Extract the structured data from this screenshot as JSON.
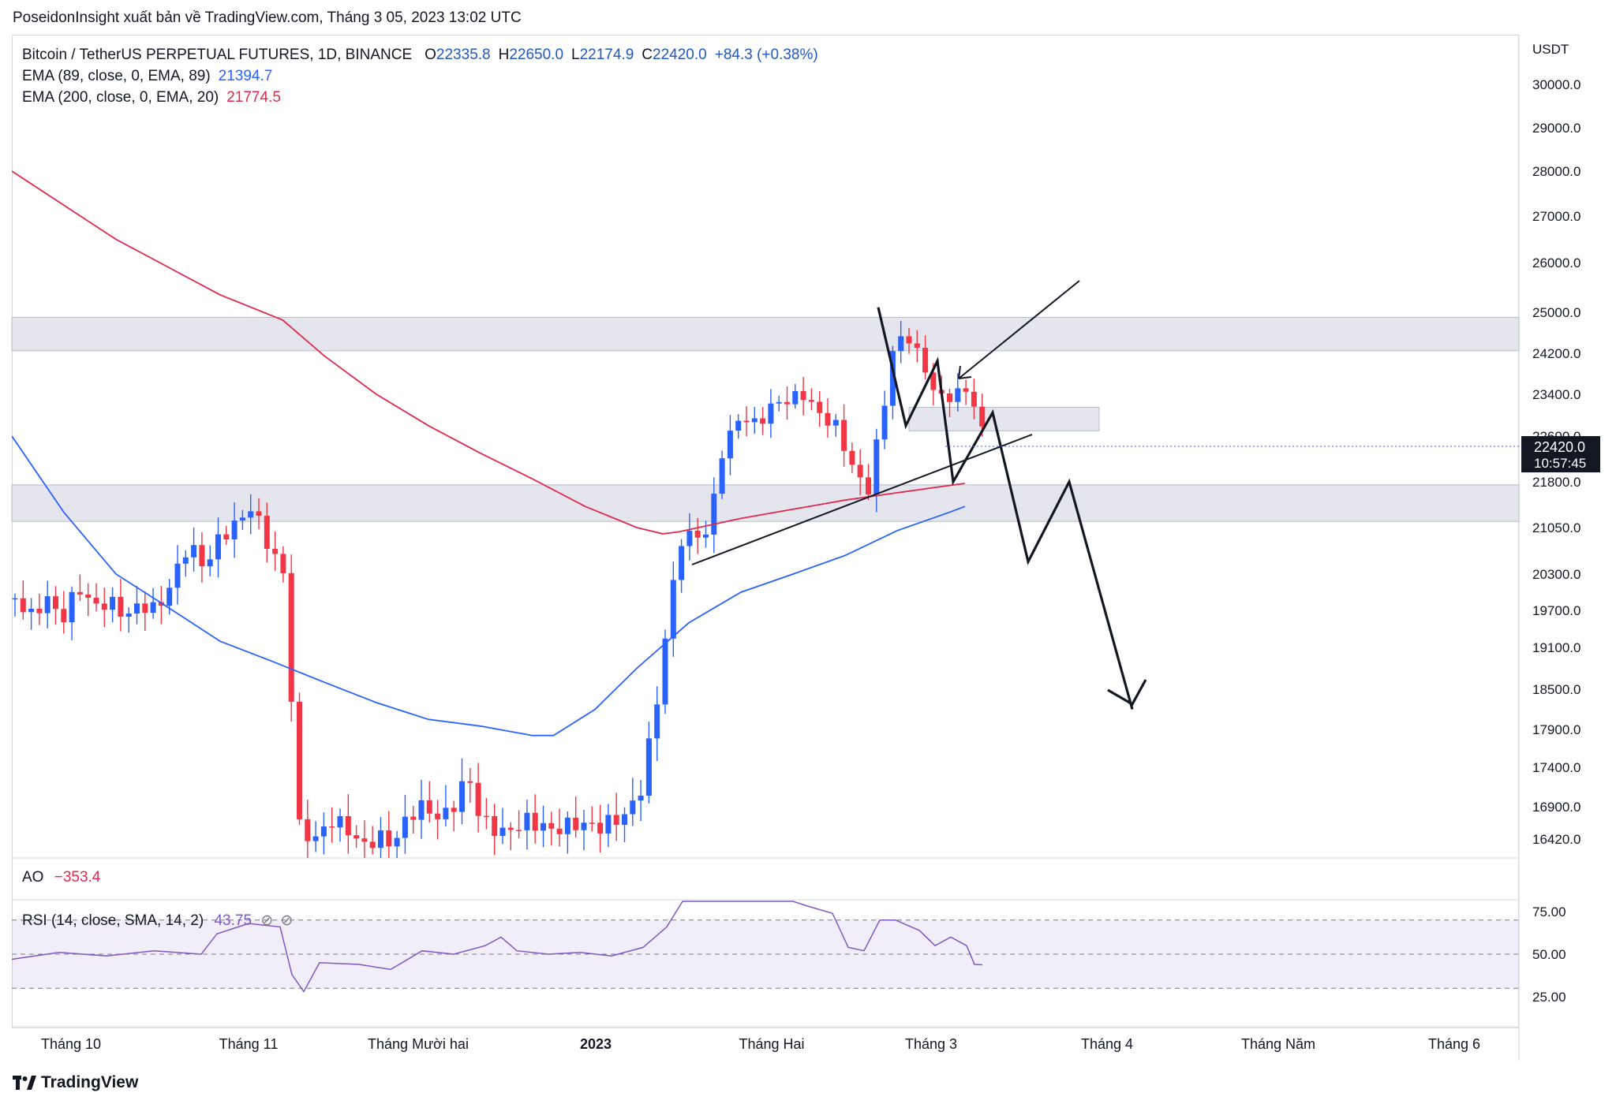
{
  "publisher_line": "PoseidonInsight xuất bản về TradingView.com, Tháng 3 05, 2023 13:02 UTC",
  "legend": {
    "symbol": "Bitcoin / TetherUS PERPETUAL FUTURES, 1D, BINANCE",
    "ohlc": {
      "open_label": "O",
      "open": "22335.8",
      "high_label": "H",
      "high": "22650.0",
      "low_label": "L",
      "low": "22174.9",
      "close_label": "C",
      "close": "22420.0",
      "change": "+84.3 (+0.38%)"
    },
    "ema1_label": "EMA (89, close, 0, EMA, 89)",
    "ema1_value": "21394.7",
    "ema2_label": "EMA (200, close, 0, EMA, 20)",
    "ema2_value": "21774.5"
  },
  "ao": {
    "label": "AO",
    "value": "−353.4"
  },
  "rsi": {
    "label": "RSI (14, close, SMA, 14, 2)",
    "value": "43.75",
    "icons": [
      "hidden-eye-icon",
      "hidden-eye-icon"
    ]
  },
  "price_axis": {
    "currency": "USDT",
    "ticks": [
      "30000.0",
      "29000.0",
      "28000.0",
      "27000.0",
      "26000.0",
      "25000.0",
      "24200.0",
      "23400.0",
      "22600.0",
      "21800.0",
      "21050.0",
      "20300.0",
      "19700.0",
      "19100.0",
      "18500.0",
      "17900.0",
      "17400.0",
      "16900.0",
      "16420.0"
    ],
    "current_price": "22420.0",
    "countdown": "10:57:45"
  },
  "rsi_axis": {
    "ticks": [
      "75.00",
      "50.00",
      "25.00"
    ]
  },
  "time_axis": [
    "Tháng 10",
    "Tháng 11",
    "Tháng Mười hai",
    "2023",
    "Tháng Hai",
    "Tháng 3",
    "Tháng 4",
    "Tháng Năm",
    "Tháng 6"
  ],
  "footer": {
    "brand": "TradingView"
  },
  "colors": {
    "up": "#2962ff",
    "down": "#f23645",
    "ema89": "#2962ff",
    "ema200": "#e0294f",
    "zone": "#dfe1ea",
    "rsi": "#7e57c2"
  },
  "chart_data": {
    "type": "candlestick",
    "symbol": "BTCUSDT.P",
    "interval": "1D",
    "y_axis_range": [
      16000,
      30500
    ],
    "overlays": [
      {
        "name": "EMA (89, close, 0, EMA, 89)",
        "points": [
          [
            0,
            22600
          ],
          [
            50,
            21300
          ],
          [
            100,
            20300
          ],
          [
            150,
            19750
          ],
          [
            200,
            19200
          ],
          [
            250,
            18900
          ],
          [
            300,
            18600
          ],
          [
            350,
            18300
          ],
          [
            400,
            18050
          ],
          [
            450,
            17950
          ],
          [
            500,
            17820
          ],
          [
            520,
            17820
          ],
          [
            560,
            18200
          ],
          [
            600,
            18800
          ],
          [
            650,
            19500
          ],
          [
            700,
            20000
          ],
          [
            750,
            20300
          ],
          [
            800,
            20600
          ],
          [
            850,
            21000
          ],
          [
            900,
            21300
          ],
          [
            915,
            21394.7
          ]
        ]
      },
      {
        "name": "EMA (200, close, 0, EMA, 20)",
        "points": [
          [
            0,
            28000
          ],
          [
            100,
            26500
          ],
          [
            200,
            25350
          ],
          [
            260,
            24850
          ],
          [
            300,
            24150
          ],
          [
            350,
            23400
          ],
          [
            400,
            22800
          ],
          [
            450,
            22300
          ],
          [
            500,
            21850
          ],
          [
            550,
            21400
          ],
          [
            600,
            21050
          ],
          [
            625,
            20950
          ],
          [
            640,
            20980
          ],
          [
            700,
            21200
          ],
          [
            750,
            21350
          ],
          [
            800,
            21500
          ],
          [
            850,
            21620
          ],
          [
            900,
            21740
          ],
          [
            915,
            21774.5
          ]
        ]
      }
    ],
    "zones": [
      {
        "y_from": 24250,
        "y_to": 24900
      },
      {
        "y_from": 21150,
        "y_to": 21750
      },
      {
        "y_from": 22700,
        "y_to": 23150,
        "x_to": 1040
      }
    ],
    "projection_path": [
      [
        853,
        25100
      ],
      [
        875,
        22800
      ],
      [
        895,
        24050
      ],
      [
        912,
        21800
      ],
      [
        950,
        23050
      ],
      [
        985,
        20500
      ],
      [
        1025,
        21800
      ],
      [
        1085,
        18200
      ]
    ],
    "rsi": {
      "overbought": 70,
      "midline": 50,
      "oversold": 30,
      "last": 43.75
    }
  }
}
